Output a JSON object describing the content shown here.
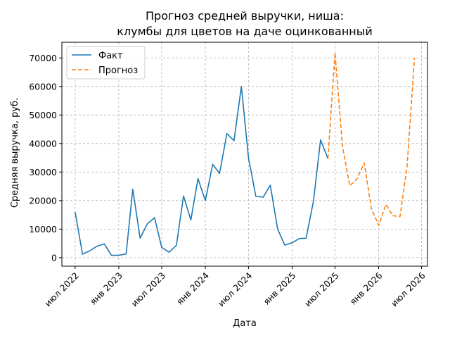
{
  "chart_data": {
    "type": "line",
    "title": "Прогноз средней выручки, ниша:\nклумбы для цветов на даче оцинкованный",
    "xlabel": "Дата",
    "ylabel": "Средняя выручка, руб.",
    "ylim": [
      -3000,
      75500
    ],
    "yticks": [
      0,
      10000,
      20000,
      30000,
      40000,
      50000,
      60000,
      70000
    ],
    "xlim": [
      "2022-05-06",
      "2026-07-26"
    ],
    "xticks": [
      {
        "date": "2022-07-01",
        "label": "июл 2022"
      },
      {
        "date": "2023-01-01",
        "label": "янв 2023"
      },
      {
        "date": "2023-07-01",
        "label": "июл 2023"
      },
      {
        "date": "2024-01-01",
        "label": "янв 2024"
      },
      {
        "date": "2024-07-01",
        "label": "июл 2024"
      },
      {
        "date": "2025-01-01",
        "label": "янв 2025"
      },
      {
        "date": "2025-07-01",
        "label": "июл 2025"
      },
      {
        "date": "2026-01-01",
        "label": "янв 2026"
      },
      {
        "date": "2026-07-01",
        "label": "июл 2026"
      }
    ],
    "grid": true,
    "legend_position": "top-left",
    "series": [
      {
        "name": "Факт",
        "color": "#1f77b4",
        "style": "solid",
        "x": [
          "2022-07-01",
          "2022-08-01",
          "2022-09-01",
          "2022-10-01",
          "2022-11-01",
          "2022-12-01",
          "2023-01-01",
          "2023-02-01",
          "2023-03-01",
          "2023-04-01",
          "2023-05-01",
          "2023-06-01",
          "2023-07-01",
          "2023-08-01",
          "2023-09-01",
          "2023-10-01",
          "2023-11-01",
          "2023-12-01",
          "2024-01-01",
          "2024-02-01",
          "2024-03-01",
          "2024-04-01",
          "2024-05-01",
          "2024-06-01",
          "2024-07-01",
          "2024-08-01",
          "2024-09-01",
          "2024-10-01",
          "2024-11-01",
          "2024-12-01",
          "2025-01-01",
          "2025-02-01",
          "2025-03-01",
          "2025-04-01",
          "2025-05-01",
          "2025-06-01"
        ],
        "y": [
          16000,
          1200,
          2400,
          4000,
          4800,
          800,
          800,
          1300,
          24000,
          6800,
          11800,
          14000,
          3600,
          1900,
          4300,
          21600,
          13200,
          27700,
          20000,
          32700,
          29500,
          43500,
          41000,
          60000,
          35000,
          21500,
          21200,
          25400,
          10000,
          4400,
          5200,
          6700,
          6800,
          19800,
          41300,
          34700
        ]
      },
      {
        "name": "Прогноз",
        "color": "#ff7f0e",
        "style": "dashed",
        "x": [
          "2025-06-01",
          "2025-07-01",
          "2025-08-01",
          "2025-09-01",
          "2025-10-01",
          "2025-11-01",
          "2025-12-01",
          "2026-01-01",
          "2026-02-01",
          "2026-03-01",
          "2026-04-01",
          "2026-05-01",
          "2026-06-01"
        ],
        "y": [
          34700,
          71800,
          39300,
          25200,
          27500,
          33200,
          17300,
          11300,
          18700,
          14700,
          14400,
          32100,
          70000
        ]
      }
    ]
  }
}
